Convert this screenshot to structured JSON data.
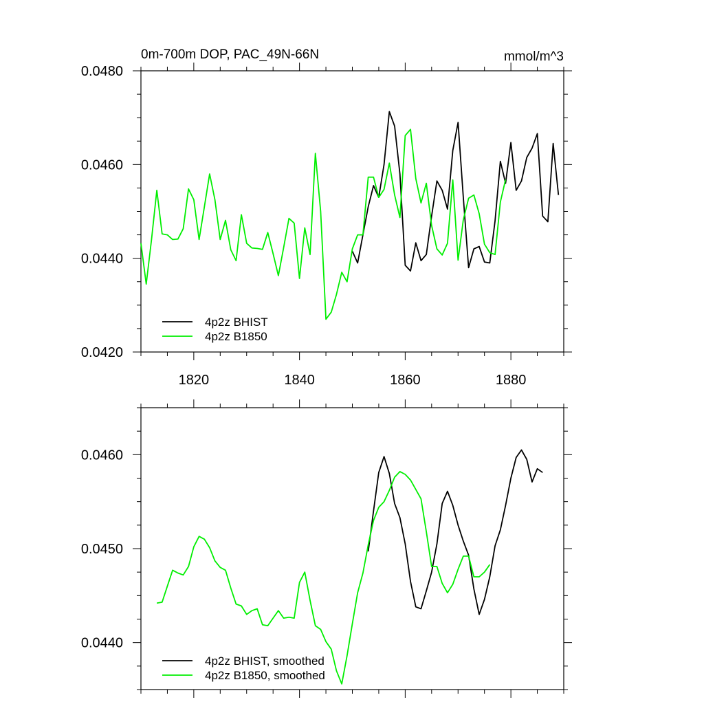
{
  "chart_data": [
    {
      "type": "line",
      "title": "0m-700m DOP, PAC_49N-66N",
      "units": "mmol/m^3",
      "xlim": [
        1810,
        1890
      ],
      "ylim": [
        0.042,
        0.048
      ],
      "xticks": [
        1820,
        1840,
        1860,
        1880
      ],
      "xtick_labels": [
        "1820",
        "1840",
        "1860",
        "1880"
      ],
      "yticks": [
        0.042,
        0.044,
        0.046,
        0.048
      ],
      "ytick_labels": [
        "0.0420",
        "0.0440",
        "0.0460",
        "0.0480"
      ],
      "legend_position": "bottom-left",
      "series": [
        {
          "name": "4p2z BHIST",
          "color": "#000000",
          "x": [
            1850,
            1851,
            1852,
            1853,
            1854,
            1855,
            1856,
            1857,
            1858,
            1859,
            1860,
            1861,
            1862,
            1863,
            1864,
            1865,
            1866,
            1867,
            1868,
            1869,
            1870,
            1871,
            1872,
            1873,
            1874,
            1875,
            1876,
            1877,
            1878,
            1879,
            1880,
            1881,
            1882,
            1883,
            1884,
            1885,
            1886,
            1887,
            1888,
            1889
          ],
          "y": [
            0.04415,
            0.0439,
            0.0445,
            0.0451,
            0.04555,
            0.0453,
            0.046,
            0.04713,
            0.04682,
            0.0458,
            0.04385,
            0.04373,
            0.04433,
            0.04395,
            0.04408,
            0.0449,
            0.04565,
            0.04545,
            0.04505,
            0.0463,
            0.0469,
            0.0453,
            0.0438,
            0.0442,
            0.04425,
            0.04392,
            0.0439,
            0.0448,
            0.04607,
            0.0456,
            0.04647,
            0.04545,
            0.04565,
            0.04615,
            0.04635,
            0.04666,
            0.0449,
            0.04478,
            0.04645,
            0.04535
          ]
        },
        {
          "name": "4p2z B1850",
          "color": "#00ee00",
          "x": [
            1810,
            1811,
            1812,
            1813,
            1814,
            1815,
            1816,
            1817,
            1818,
            1819,
            1820,
            1821,
            1822,
            1823,
            1824,
            1825,
            1826,
            1827,
            1828,
            1829,
            1830,
            1831,
            1832,
            1833,
            1834,
            1835,
            1836,
            1837,
            1838,
            1839,
            1840,
            1841,
            1842,
            1843,
            1844,
            1845,
            1846,
            1847,
            1848,
            1849,
            1850,
            1851,
            1852,
            1853,
            1854,
            1855,
            1856,
            1857,
            1858,
            1859,
            1860,
            1861,
            1862,
            1863,
            1864,
            1865,
            1866,
            1867,
            1868,
            1869,
            1870,
            1871,
            1872,
            1873,
            1874,
            1875,
            1876,
            1877,
            1878,
            1879
          ],
          "y": [
            0.04432,
            0.04345,
            0.0444,
            0.04545,
            0.04452,
            0.0445,
            0.0444,
            0.04441,
            0.04463,
            0.04548,
            0.04525,
            0.0444,
            0.0451,
            0.0458,
            0.04525,
            0.0444,
            0.04481,
            0.04418,
            0.04395,
            0.04493,
            0.04432,
            0.04422,
            0.04421,
            0.04419,
            0.04455,
            0.0441,
            0.04363,
            0.04423,
            0.04485,
            0.04475,
            0.04357,
            0.04465,
            0.04408,
            0.04624,
            0.045,
            0.0427,
            0.04285,
            0.04323,
            0.0437,
            0.0435,
            0.0442,
            0.0445,
            0.0445,
            0.04573,
            0.04573,
            0.0453,
            0.04547,
            0.04603,
            0.04535,
            0.04487,
            0.04662,
            0.04675,
            0.0457,
            0.04518,
            0.0456,
            0.0447,
            0.0442,
            0.04407,
            0.04432,
            0.04567,
            0.04396,
            0.04482,
            0.04528,
            0.04535,
            0.04495,
            0.0443,
            0.04412,
            0.04408,
            0.0452,
            0.04568
          ]
        }
      ]
    },
    {
      "type": "line",
      "xlim": [
        1810,
        1890
      ],
      "ylim": [
        0.0435,
        0.0465
      ],
      "yticks": [
        0.044,
        0.045,
        0.046
      ],
      "ytick_labels": [
        "0.0440",
        "0.0450",
        "0.0460"
      ],
      "legend_position": "bottom-left",
      "series": [
        {
          "name": "4p2z BHIST, smoothed",
          "color": "#000000",
          "x": [
            1853,
            1854,
            1855,
            1856,
            1857,
            1858,
            1859,
            1860,
            1861,
            1862,
            1863,
            1864,
            1865,
            1866,
            1867,
            1868,
            1869,
            1870,
            1871,
            1872,
            1873,
            1874,
            1875,
            1876,
            1877,
            1878,
            1879,
            1880,
            1881,
            1882,
            1883,
            1884,
            1885,
            1886
          ],
          "y": [
            0.04497,
            0.0454,
            0.04581,
            0.04598,
            0.0458,
            0.04548,
            0.04533,
            0.04505,
            0.04465,
            0.04438,
            0.04436,
            0.04455,
            0.04475,
            0.04505,
            0.04548,
            0.04561,
            0.04546,
            0.04525,
            0.04508,
            0.04493,
            0.04457,
            0.0443,
            0.04446,
            0.0447,
            0.04503,
            0.0452,
            0.04546,
            0.04575,
            0.04597,
            0.04605,
            0.04595,
            0.04571,
            0.04585,
            0.04581
          ]
        },
        {
          "name": "4p2z B1850, smoothed",
          "color": "#00ee00",
          "x": [
            1813,
            1814,
            1815,
            1816,
            1817,
            1818,
            1819,
            1820,
            1821,
            1822,
            1823,
            1824,
            1825,
            1826,
            1827,
            1828,
            1829,
            1830,
            1831,
            1832,
            1833,
            1834,
            1835,
            1836,
            1837,
            1838,
            1839,
            1840,
            1841,
            1842,
            1843,
            1844,
            1845,
            1846,
            1847,
            1848,
            1849,
            1850,
            1851,
            1852,
            1853,
            1854,
            1855,
            1856,
            1857,
            1858,
            1859,
            1860,
            1861,
            1862,
            1863,
            1864,
            1865,
            1866,
            1867,
            1868,
            1869,
            1870,
            1871,
            1872,
            1873,
            1874,
            1875,
            1876
          ],
          "y": [
            0.04442,
            0.04443,
            0.0446,
            0.04477,
            0.04474,
            0.04472,
            0.04481,
            0.04502,
            0.04513,
            0.0451,
            0.04501,
            0.04487,
            0.0448,
            0.04477,
            0.04458,
            0.04441,
            0.04439,
            0.0443,
            0.04434,
            0.04436,
            0.04419,
            0.04418,
            0.04426,
            0.04434,
            0.04426,
            0.04427,
            0.04426,
            0.04464,
            0.04475,
            0.04445,
            0.04418,
            0.04414,
            0.04401,
            0.04393,
            0.0437,
            0.04356,
            0.04386,
            0.0442,
            0.04453,
            0.04474,
            0.04504,
            0.0453,
            0.04544,
            0.0455,
            0.04562,
            0.04576,
            0.04582,
            0.04579,
            0.04573,
            0.04563,
            0.04553,
            0.04518,
            0.04481,
            0.04481,
            0.04463,
            0.04453,
            0.04462,
            0.04478,
            0.04492,
            0.04492,
            0.0447,
            0.0447,
            0.04475,
            0.04483
          ]
        }
      ]
    }
  ]
}
